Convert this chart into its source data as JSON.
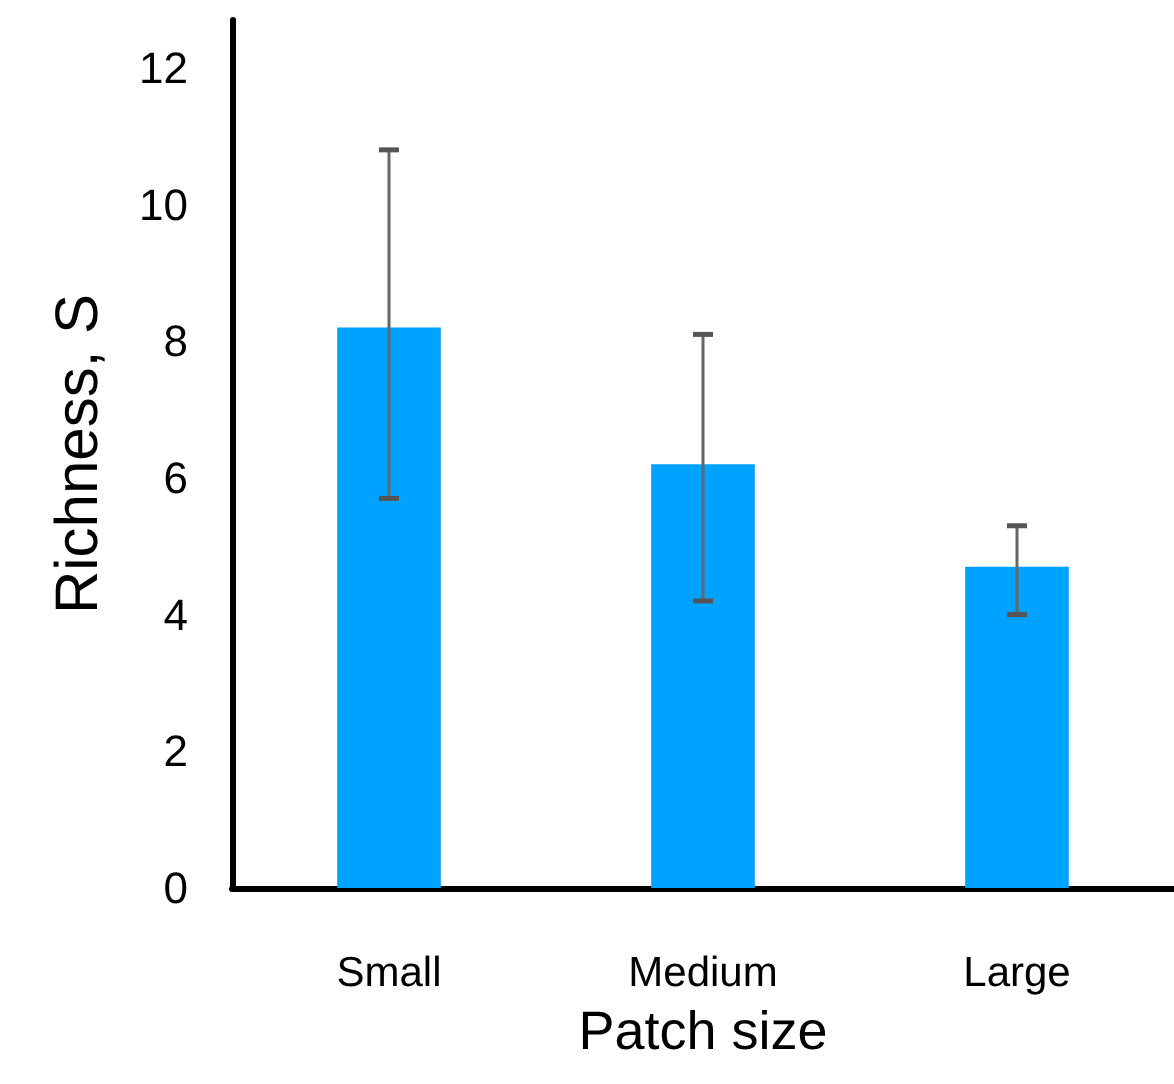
{
  "chart_data": {
    "type": "bar",
    "xlabel": "Patch size",
    "ylabel": "Richness, S",
    "categories": [
      "Small",
      "Medium",
      "Large"
    ],
    "values": [
      8.2,
      6.2,
      4.7
    ],
    "errors": [
      [
        5.7,
        10.8
      ],
      [
        4.2,
        8.1
      ],
      [
        4.0,
        5.3
      ]
    ],
    "color": "#00a2ff",
    "ylim": [
      0,
      12.7
    ],
    "yticks": [
      0,
      2,
      4,
      6,
      8,
      10,
      12
    ],
    "grid": false
  }
}
